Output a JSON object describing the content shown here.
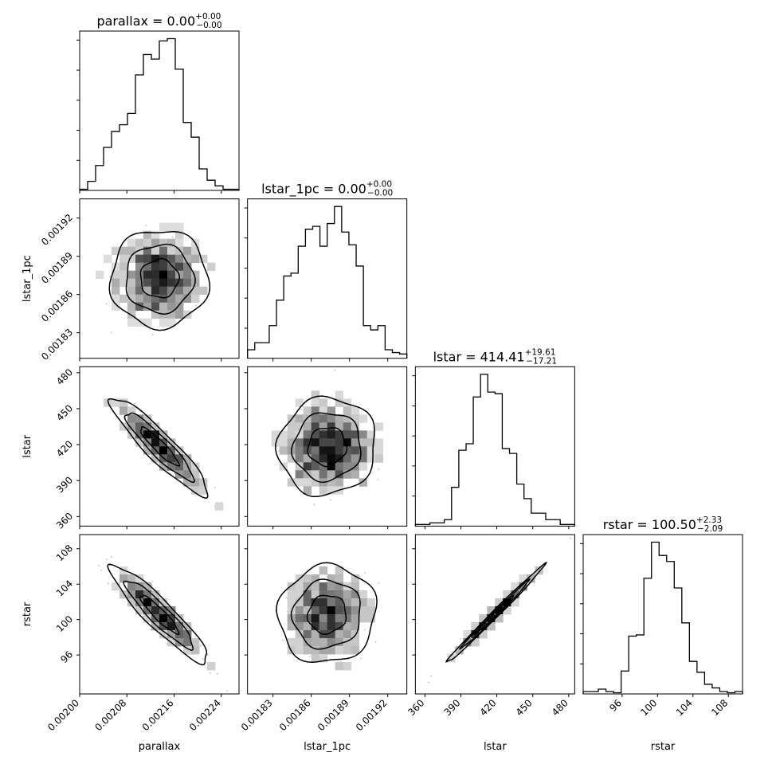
{
  "chart_data": {
    "type": "corner",
    "parameters": [
      "parallax",
      "lstar_1pc",
      "lstar",
      "rstar"
    ],
    "axis_labels": [
      "parallax",
      "lstar_1pc",
      "lstar",
      "rstar"
    ],
    "titles": [
      {
        "param": "parallax",
        "prefix": "parallax = 0.00",
        "plus": "+0.00",
        "minus": "−0.00"
      },
      {
        "param": "lstar_1pc",
        "prefix": "lstar_1pc = 0.00",
        "plus": "+0.00",
        "minus": "−0.00"
      },
      {
        "param": "lstar",
        "prefix": "lstar = 414.41",
        "plus": "+19.61",
        "minus": "−17.21"
      },
      {
        "param": "rstar",
        "prefix": "rstar = 100.50",
        "plus": "+2.33",
        "minus": "−2.09"
      }
    ],
    "ranges": [
      [
        0.002,
        0.00227
      ],
      [
        0.00181,
        0.001935
      ],
      [
        352,
        485
      ],
      [
        91.6,
        109.6
      ]
    ],
    "ticks": [
      {
        "values": [
          0.002,
          0.00208,
          0.00216,
          0.00224
        ],
        "labels": [
          "0.00200",
          "0.00208",
          "0.00216",
          "0.00224"
        ]
      },
      {
        "values": [
          0.00183,
          0.00186,
          0.00189,
          0.00192
        ],
        "labels": [
          "0.00183",
          "0.00186",
          "0.00189",
          "0.00192"
        ]
      },
      {
        "values": [
          360,
          390,
          420,
          450,
          480
        ],
        "labels": [
          "360",
          "390",
          "420",
          "450",
          "480"
        ]
      },
      {
        "values": [
          96,
          100,
          104,
          108
        ],
        "labels": [
          "96",
          "100",
          "104",
          "108"
        ]
      }
    ],
    "histograms": [
      {
        "param": "parallax",
        "counts": [
          1,
          8,
          22,
          38,
          52,
          58,
          68,
          102,
          120,
          116,
          132,
          134,
          107,
          60,
          47,
          19,
          9,
          4,
          1,
          1
        ]
      },
      {
        "param": "lstar_1pc",
        "counts": [
          6,
          11,
          11,
          23,
          41,
          58,
          60,
          79,
          91,
          93,
          79,
          95,
          107,
          89,
          80,
          65,
          23,
          20,
          23,
          6,
          4,
          3
        ]
      },
      {
        "param": "lstar",
        "counts": [
          1,
          1,
          2,
          2,
          4,
          24,
          47,
          51,
          80,
          94,
          83,
          82,
          48,
          45,
          26,
          17,
          8,
          8,
          4,
          4,
          1,
          1
        ]
      },
      {
        "param": "rstar",
        "counts": [
          2,
          2,
          4,
          2,
          1,
          19,
          48,
          49,
          96,
          126,
          115,
          110,
          88,
          59,
          27,
          18,
          8,
          5,
          2,
          1,
          2
        ]
      }
    ],
    "correlations": [
      {
        "pair": [
          "lstar_1pc",
          "parallax"
        ],
        "r": 0.0
      },
      {
        "pair": [
          "lstar",
          "parallax"
        ],
        "r": -0.92
      },
      {
        "pair": [
          "lstar",
          "lstar_1pc"
        ],
        "r": 0.05
      },
      {
        "pair": [
          "rstar",
          "parallax"
        ],
        "r": -0.92
      },
      {
        "pair": [
          "rstar",
          "lstar_1pc"
        ],
        "r": 0.05
      },
      {
        "pair": [
          "rstar",
          "lstar"
        ],
        "r": 0.995
      }
    ],
    "grid": false,
    "legend": "none"
  }
}
